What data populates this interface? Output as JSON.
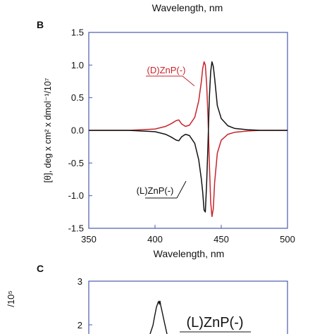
{
  "top_fragment": {
    "xlabel": "Wavelength, nm"
  },
  "panel_b": {
    "label": "B",
    "chart_data": {
      "type": "line",
      "title": "",
      "xlabel": "Wavelength, nm",
      "ylabel": "[θ], deg x cm² x dmol⁻¹/10⁷",
      "xlim": [
        350,
        500
      ],
      "ylim": [
        -1.5,
        1.5
      ],
      "x_ticks": [
        "350",
        "400",
        "450",
        "500"
      ],
      "y_ticks": [
        "-1.5",
        "-1.0",
        "-0.5",
        "0.0",
        "0.5",
        "1.0",
        "1.5"
      ],
      "grid": false,
      "series": [
        {
          "name": "(D)ZnP(-)",
          "color": "#c8242b",
          "x": [
            350,
            380,
            400,
            408,
            412,
            416,
            418,
            420,
            423,
            426,
            430,
            433,
            435,
            436,
            437,
            438,
            439,
            440,
            441,
            442,
            443,
            444,
            445,
            447,
            450,
            455,
            460,
            470,
            480,
            500
          ],
          "y": [
            0.0,
            0.0,
            0.02,
            0.06,
            0.1,
            0.15,
            0.16,
            0.1,
            0.06,
            0.08,
            0.2,
            0.45,
            0.75,
            0.95,
            1.05,
            1.0,
            0.7,
            0.2,
            -0.5,
            -1.1,
            -1.32,
            -1.2,
            -0.8,
            -0.35,
            -0.15,
            -0.06,
            -0.03,
            -0.01,
            0.0,
            0.0
          ]
        },
        {
          "name": "(L)ZnP(-)",
          "color": "#111111",
          "x": [
            350,
            380,
            400,
            408,
            412,
            416,
            418,
            420,
            423,
            426,
            430,
            433,
            435,
            436,
            437,
            438,
            439,
            440,
            441,
            442,
            443,
            444,
            445,
            447,
            450,
            455,
            460,
            470,
            480,
            500
          ],
          "y": [
            0.0,
            0.0,
            -0.02,
            -0.06,
            -0.1,
            -0.15,
            -0.16,
            -0.1,
            -0.06,
            -0.08,
            -0.2,
            -0.45,
            -0.75,
            -0.95,
            -1.22,
            -1.25,
            -0.8,
            -0.2,
            0.5,
            0.9,
            1.05,
            0.98,
            0.8,
            0.38,
            0.18,
            0.07,
            0.03,
            0.01,
            0.0,
            0.0
          ]
        }
      ],
      "annotations": [
        {
          "text": "(D)ZnP(-)",
          "color": "#c8242b"
        },
        {
          "text": "(L)ZnP(-)",
          "color": "#111111"
        }
      ]
    }
  },
  "panel_c": {
    "label": "C",
    "ylabel_fragment": "/10⁵",
    "y_ticks": [
      "3",
      "2"
    ],
    "legend_text": "(L)ZnP(-)"
  }
}
